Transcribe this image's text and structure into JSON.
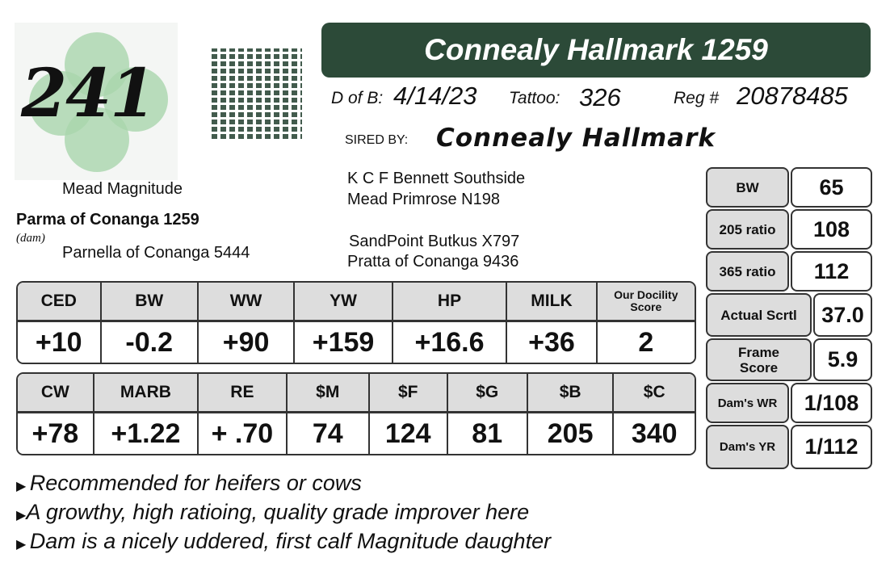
{
  "lot": {
    "number": "241"
  },
  "animal": {
    "name": "Connealy Hallmark 1259",
    "dob_label": "D of B:",
    "dob": "4/14/23",
    "tattoo_label": "Tattoo:",
    "tattoo": "326",
    "reg_label": "Reg #",
    "reg": "20878485",
    "sired_label": "SIRED BY:",
    "sire": "Connealy Hallmark"
  },
  "pedigree": {
    "sire_sire": "K C F Bennett Southside",
    "sire_dam": "Mead Primrose N198",
    "dam_sire": "Mead Magnitude",
    "dam": "Parma of Conanga 1259",
    "dam_label": "(dam)",
    "dam_dam": "Parnella of Conanga 5444",
    "dam_sire_sire": "SandPoint Butkus X797",
    "dam_sire_dam": "Pratta of Conanga 9436"
  },
  "epd1": {
    "headers": [
      "CED",
      "BW",
      "WW",
      "YW",
      "HP",
      "MILK",
      "Our Docility Score"
    ],
    "values": [
      "+10",
      "-0.2",
      "+90",
      "+159",
      "+16.6",
      "+36",
      "2"
    ]
  },
  "epd2": {
    "headers": [
      "CW",
      "MARB",
      "RE",
      "$M",
      "$F",
      "$G",
      "$B",
      "$C"
    ],
    "values": [
      "+78",
      "+1.22",
      "+ .70",
      "74",
      "124",
      "81",
      "205",
      "340"
    ]
  },
  "stats": [
    {
      "label": "BW",
      "value": "65"
    },
    {
      "label": "205 ratio",
      "value": "108"
    },
    {
      "label": "365 ratio",
      "value": "112"
    },
    {
      "label": "Actual Scrtl",
      "value": "37.0"
    },
    {
      "label": "Frame Score",
      "value": "5.9"
    },
    {
      "label": "Dam's WR",
      "value": "1/108"
    },
    {
      "label": "Dam's YR",
      "value": "1/112"
    }
  ],
  "notes": [
    "Recommended for heifers or cows",
    "A growthy, high ratioing, quality grade improver here",
    "Dam is a nicely uddered, first calf Magnitude daughter"
  ],
  "colors": {
    "title_bg": "#2c4a38",
    "header_bg": "#dddddd"
  }
}
